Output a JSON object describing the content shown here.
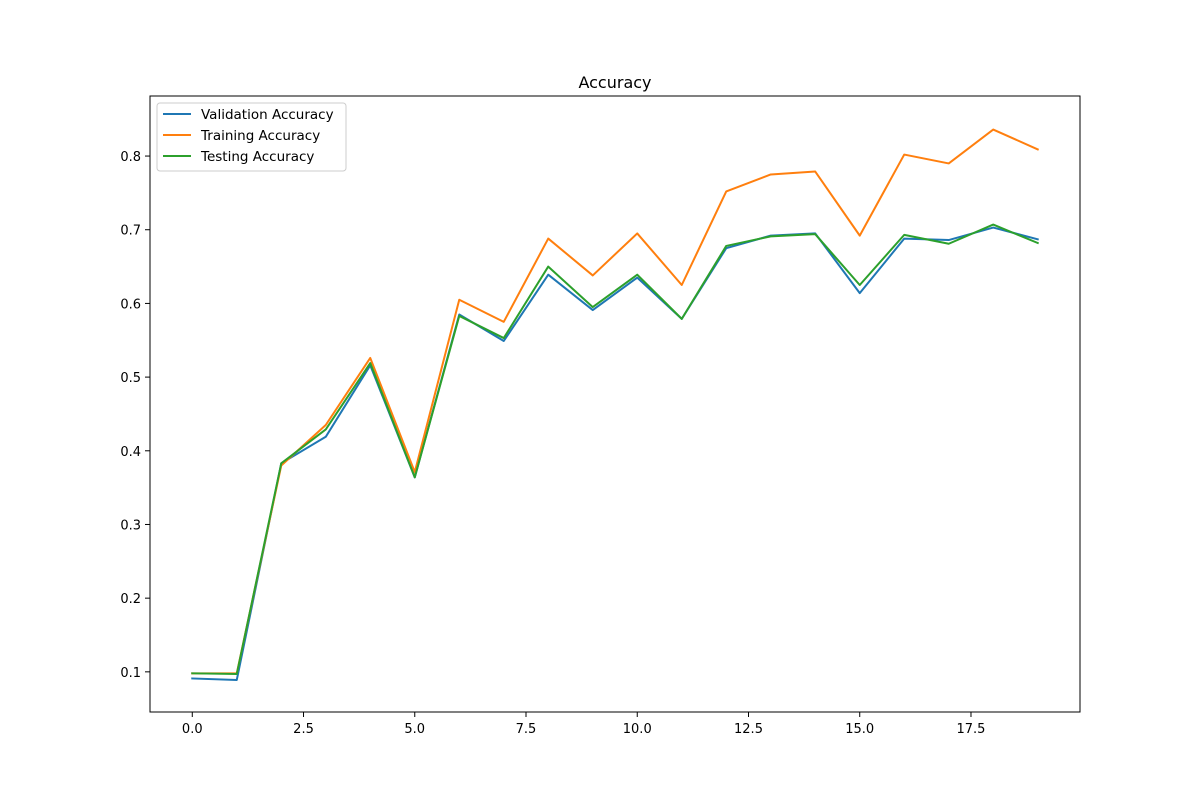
{
  "chart_data": {
    "type": "line",
    "title": "Accuracy",
    "xlabel": "",
    "ylabel": "",
    "xlim": [
      -0.95,
      19.95
    ],
    "ylim": [
      0.0455,
      0.8815
    ],
    "x_ticks": [
      0.0,
      2.5,
      5.0,
      7.5,
      10.0,
      12.5,
      15.0,
      17.5
    ],
    "x_tick_labels": [
      "0.0",
      "2.5",
      "5.0",
      "7.5",
      "10.0",
      "12.5",
      "15.0",
      "17.5"
    ],
    "y_ticks": [
      0.1,
      0.2,
      0.3,
      0.4,
      0.5,
      0.6,
      0.7,
      0.8
    ],
    "y_tick_labels": [
      "0.1",
      "0.2",
      "0.3",
      "0.4",
      "0.5",
      "0.6",
      "0.7",
      "0.8"
    ],
    "grid": false,
    "legend_position": "upper-left",
    "x": [
      0,
      1,
      2,
      3,
      4,
      5,
      6,
      7,
      8,
      9,
      10,
      11,
      12,
      13,
      14,
      15,
      16,
      17,
      18,
      19
    ],
    "series": [
      {
        "name": "Validation Accuracy",
        "color": "#1f77b4",
        "values": [
          0.091,
          0.089,
          0.383,
          0.419,
          0.516,
          0.364,
          0.585,
          0.549,
          0.639,
          0.591,
          0.635,
          0.579,
          0.675,
          0.692,
          0.695,
          0.614,
          0.688,
          0.686,
          0.703,
          0.687
        ]
      },
      {
        "name": "Training Accuracy",
        "color": "#ff7f0e",
        "values": [
          0.098,
          0.098,
          0.38,
          0.435,
          0.526,
          0.371,
          0.605,
          0.575,
          0.688,
          0.638,
          0.695,
          0.625,
          0.752,
          0.775,
          0.779,
          0.692,
          0.802,
          0.79,
          0.836,
          0.809
        ]
      },
      {
        "name": "Testing Accuracy",
        "color": "#2ca02c",
        "values": [
          0.098,
          0.097,
          0.383,
          0.429,
          0.519,
          0.364,
          0.583,
          0.553,
          0.65,
          0.595,
          0.639,
          0.579,
          0.678,
          0.691,
          0.694,
          0.625,
          0.693,
          0.681,
          0.707,
          0.682
        ]
      }
    ]
  }
}
